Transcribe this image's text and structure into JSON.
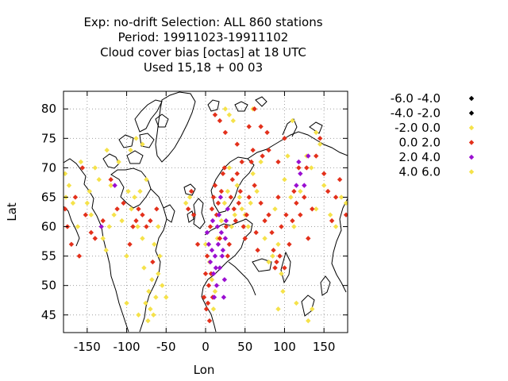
{
  "chart_data": {
    "type": "scatter",
    "title_lines": [
      "Exp: no-drift   Selection: ALL    860 stations",
      "Period: 19911023-19911102",
      "Cloud cover bias [octas] at  18 UTC",
      "Used  15,18 + 00 03"
    ],
    "xlabel": "Lon",
    "ylabel": "Lat",
    "xlim": [
      -180,
      180
    ],
    "ylim": [
      42,
      83
    ],
    "xticks": [
      -150,
      -100,
      -50,
      0,
      50,
      100,
      150
    ],
    "yticks": [
      45,
      50,
      55,
      60,
      65,
      70,
      75,
      80
    ],
    "grid": true,
    "legend_position": "right",
    "series": [
      {
        "name": "-6.0 -4.0",
        "color": "#000000",
        "points": []
      },
      {
        "name": "-4.0 -2.0",
        "color": "#000000",
        "points": []
      },
      {
        "name": "-2.0 0.0",
        "color": "#f5e24a",
        "points": [
          [
            -178,
            69
          ],
          [
            -177,
            65
          ],
          [
            -173,
            67
          ],
          [
            -168,
            64
          ],
          [
            -162,
            60
          ],
          [
            -158,
            71
          ],
          [
            -150,
            64
          ],
          [
            -147,
            66
          ],
          [
            -145,
            62
          ],
          [
            -140,
            70
          ],
          [
            -135,
            68
          ],
          [
            -130,
            58
          ],
          [
            -126,
            56
          ],
          [
            -122,
            60
          ],
          [
            -120,
            67
          ],
          [
            -116,
            62
          ],
          [
            -110,
            71
          ],
          [
            -106,
            61
          ],
          [
            -100,
            55
          ],
          [
            -98,
            66
          ],
          [
            -94,
            63
          ],
          [
            -90,
            65
          ],
          [
            -86,
            60
          ],
          [
            -83,
            66
          ],
          [
            -80,
            58
          ],
          [
            -78,
            53
          ],
          [
            -76,
            47
          ],
          [
            -75,
            68
          ],
          [
            -73,
            44
          ],
          [
            -72,
            49
          ],
          [
            -70,
            46
          ],
          [
            -68,
            51
          ],
          [
            -66,
            45
          ],
          [
            -65,
            57
          ],
          [
            -63,
            48
          ],
          [
            -60,
            52
          ],
          [
            -58,
            55
          ],
          [
            -55,
            50
          ],
          [
            -25,
            64
          ],
          [
            -20,
            65
          ],
          [
            0,
            57
          ],
          [
            5,
            54
          ],
          [
            8,
            51
          ],
          [
            10,
            46
          ],
          [
            12,
            49
          ],
          [
            15,
            58
          ],
          [
            20,
            61
          ],
          [
            24,
            64
          ],
          [
            28,
            66
          ],
          [
            30,
            70
          ],
          [
            33,
            60
          ],
          [
            37,
            62
          ],
          [
            40,
            67
          ],
          [
            43,
            65
          ],
          [
            46,
            63
          ],
          [
            50,
            62
          ],
          [
            54,
            60
          ],
          [
            57,
            64
          ],
          [
            60,
            69
          ],
          [
            65,
            66
          ],
          [
            70,
            71
          ],
          [
            75,
            58
          ],
          [
            80,
            54
          ],
          [
            85,
            55
          ],
          [
            88,
            63
          ],
          [
            92,
            57
          ],
          [
            96,
            52
          ],
          [
            100,
            68
          ],
          [
            104,
            72
          ],
          [
            108,
            65
          ],
          [
            112,
            60
          ],
          [
            120,
            66
          ],
          [
            128,
            72
          ],
          [
            134,
            70
          ],
          [
            140,
            63
          ],
          [
            145,
            74
          ],
          [
            150,
            67
          ],
          [
            158,
            62
          ],
          [
            165,
            60
          ],
          [
            172,
            65
          ],
          [
            178,
            64
          ],
          [
            -125,
            73
          ],
          [
            -95,
            73
          ],
          [
            -88,
            75
          ],
          [
            -80,
            74
          ],
          [
            30,
            79
          ],
          [
            25,
            80
          ],
          [
            35,
            78
          ],
          [
            60,
            80
          ],
          [
            110,
            78
          ],
          [
            140,
            76
          ],
          [
            -60,
            60
          ],
          [
            -50,
            48
          ],
          [
            -100,
            47
          ],
          [
            -85,
            45
          ],
          [
            92,
            46
          ],
          [
            98,
            49
          ],
          [
            115,
            47
          ],
          [
            130,
            44
          ],
          [
            135,
            46
          ]
        ]
      },
      {
        "name": "0.0 2.0",
        "color": "#e3301b",
        "points": [
          [
            -178,
            63
          ],
          [
            -175,
            60
          ],
          [
            -170,
            57
          ],
          [
            -165,
            65
          ],
          [
            -160,
            55
          ],
          [
            -156,
            70
          ],
          [
            -152,
            62
          ],
          [
            -145,
            59
          ],
          [
            -140,
            58
          ],
          [
            -130,
            61
          ],
          [
            -120,
            68
          ],
          [
            -112,
            63
          ],
          [
            -104,
            64
          ],
          [
            -96,
            57
          ],
          [
            -92,
            60
          ],
          [
            -88,
            61
          ],
          [
            -85,
            63
          ],
          [
            -80,
            62
          ],
          [
            -75,
            60
          ],
          [
            -70,
            61
          ],
          [
            -67,
            54
          ],
          [
            -62,
            63
          ],
          [
            -22,
            63
          ],
          [
            -18,
            66
          ],
          [
            -15,
            62
          ],
          [
            -10,
            57
          ],
          [
            0,
            52
          ],
          [
            2,
            55
          ],
          [
            4,
            50
          ],
          [
            6,
            60
          ],
          [
            8,
            63
          ],
          [
            10,
            65
          ],
          [
            12,
            67
          ],
          [
            14,
            62
          ],
          [
            16,
            64
          ],
          [
            18,
            58
          ],
          [
            20,
            66
          ],
          [
            22,
            69
          ],
          [
            24,
            70
          ],
          [
            26,
            60
          ],
          [
            28,
            55
          ],
          [
            30,
            57
          ],
          [
            32,
            65
          ],
          [
            34,
            68
          ],
          [
            36,
            63
          ],
          [
            38,
            61
          ],
          [
            40,
            69
          ],
          [
            42,
            64
          ],
          [
            44,
            66
          ],
          [
            46,
            71
          ],
          [
            48,
            60
          ],
          [
            50,
            58
          ],
          [
            52,
            62
          ],
          [
            55,
            65
          ],
          [
            58,
            71
          ],
          [
            60,
            73
          ],
          [
            62,
            67
          ],
          [
            64,
            59
          ],
          [
            66,
            56
          ],
          [
            70,
            64
          ],
          [
            72,
            72
          ],
          [
            75,
            61
          ],
          [
            78,
            76
          ],
          [
            80,
            62
          ],
          [
            84,
            59
          ],
          [
            86,
            56
          ],
          [
            88,
            53
          ],
          [
            90,
            54
          ],
          [
            92,
            65
          ],
          [
            94,
            55
          ],
          [
            96,
            60
          ],
          [
            100,
            53
          ],
          [
            102,
            62
          ],
          [
            106,
            57
          ],
          [
            110,
            61
          ],
          [
            112,
            66
          ],
          [
            115,
            64
          ],
          [
            118,
            70
          ],
          [
            120,
            62
          ],
          [
            125,
            65
          ],
          [
            130,
            58
          ],
          [
            135,
            63
          ],
          [
            140,
            72
          ],
          [
            145,
            75
          ],
          [
            150,
            69
          ],
          [
            155,
            66
          ],
          [
            160,
            61
          ],
          [
            165,
            65
          ],
          [
            170,
            68
          ],
          [
            178,
            62
          ],
          [
            12,
            79
          ],
          [
            18,
            78
          ],
          [
            25,
            76
          ],
          [
            40,
            74
          ],
          [
            55,
            77
          ],
          [
            62,
            80
          ],
          [
            70,
            77
          ],
          [
            80,
            73
          ],
          [
            92,
            71
          ],
          [
            100,
            75
          ],
          [
            128,
            70
          ],
          [
            -2,
            48
          ],
          [
            1,
            46
          ],
          [
            3,
            47
          ],
          [
            5,
            44
          ],
          [
            7,
            52
          ],
          [
            9,
            48
          ]
        ]
      },
      {
        "name": "2.0 4.0",
        "color": "#9a0fd1",
        "points": [
          [
            -132,
            60
          ],
          [
            -115,
            67
          ],
          [
            2,
            59
          ],
          [
            4,
            57
          ],
          [
            6,
            54
          ],
          [
            8,
            56
          ],
          [
            10,
            52
          ],
          [
            12,
            55
          ],
          [
            14,
            50
          ],
          [
            16,
            57
          ],
          [
            18,
            53
          ],
          [
            20,
            59
          ],
          [
            22,
            56
          ],
          [
            24,
            51
          ],
          [
            26,
            61
          ],
          [
            28,
            63
          ],
          [
            11,
            48
          ],
          [
            15,
            60
          ],
          [
            17,
            62
          ],
          [
            19,
            65
          ],
          [
            21,
            55
          ],
          [
            25,
            58
          ],
          [
            9,
            61
          ],
          [
            115,
            67
          ],
          [
            118,
            71
          ],
          [
            120,
            69
          ],
          [
            125,
            67
          ],
          [
            130,
            72
          ],
          [
            13,
            53
          ],
          [
            23,
            48
          ]
        ]
      },
      {
        "name": "4.0 6.0",
        "color": "#f5e24a",
        "points": []
      }
    ]
  },
  "map": {
    "coastline_color": "#000000",
    "grid_color": "#a0a0a0"
  }
}
